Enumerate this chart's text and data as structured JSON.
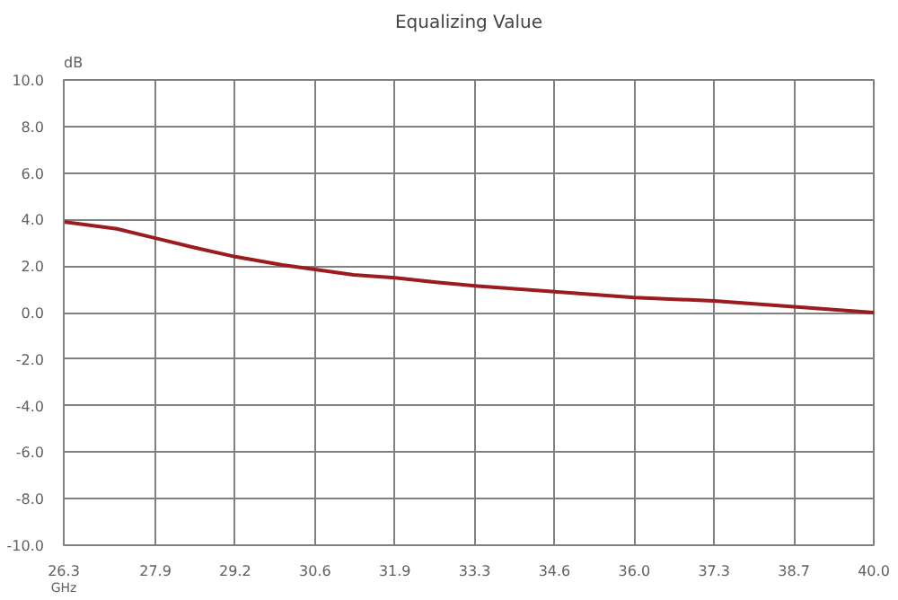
{
  "chart_data": {
    "type": "line",
    "title": "Equalizing Value",
    "xlabel": "GHz",
    "ylabel": "dB",
    "series": [
      {
        "color": "#9b1b1e",
        "x": [
          26.3,
          27.2,
          27.85,
          28.5,
          29.2,
          30.0,
          30.55,
          31.2,
          31.9,
          32.6,
          33.25,
          34.6,
          35.95,
          37.3,
          38.65,
          40.0
        ],
        "values": [
          3.9,
          3.6,
          3.2,
          2.8,
          2.4,
          2.05,
          1.85,
          1.62,
          1.5,
          1.3,
          1.15,
          0.9,
          0.65,
          0.5,
          0.25,
          0.0
        ]
      }
    ],
    "xlim": [
      26.3,
      40.0
    ],
    "xticks": [
      26.3,
      {
        "value": 27.85,
        "label": "27.9"
      },
      29.2,
      {
        "value": 30.55,
        "label": "30.6"
      },
      31.9,
      {
        "value": 33.25,
        "label": "33.3"
      },
      34.6,
      {
        "value": 35.95,
        "label": "36.0"
      },
      37.3,
      {
        "value": 38.65,
        "label": "38.7"
      },
      {
        "value": 40,
        "label": "40.0"
      }
    ],
    "ylim": [
      -10,
      10
    ],
    "yticks": [
      {
        "value": 10,
        "label": "10.0"
      },
      {
        "value": 8,
        "label": "8.0"
      },
      {
        "value": 6,
        "label": "6.0"
      },
      {
        "value": 4,
        "label": "4.0"
      },
      {
        "value": 2,
        "label": "2.0"
      },
      {
        "value": 0,
        "label": "0.0"
      },
      {
        "value": -2,
        "label": "-2.0"
      },
      {
        "value": -4,
        "label": "-4.0"
      },
      {
        "value": -6,
        "label": "-6.0"
      },
      {
        "value": -8,
        "label": "-8.0"
      },
      {
        "value": -10,
        "label": "-10.0"
      }
    ],
    "grid": true,
    "marker": "none",
    "line_style": "solid"
  }
}
